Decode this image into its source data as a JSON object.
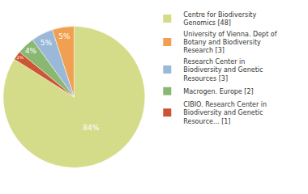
{
  "chart_data": {
    "type": "pie",
    "categories": [
      "Centre for Biodiversity\nGenomics [48]",
      "University of Vienna. Dept of\nBotany and Biodiversity\nResearch [3]",
      "Research Center in\nBiodiversity and Genetic\nResources [3]",
      "Macrogen. Europe [2]",
      "CIBIO. Research Center in\nBiodiversity and Genetic\nResource... [1]"
    ],
    "values": [
      84,
      5,
      5,
      4,
      2
    ],
    "value_labels": [
      "84%",
      "5%",
      "5%",
      "4%",
      "2%"
    ],
    "colors": [
      "#d4dc8a",
      "#f0a050",
      "#9ab8d8",
      "#8ab870",
      "#cc5533"
    ],
    "data_labels": true,
    "legend": "right"
  }
}
